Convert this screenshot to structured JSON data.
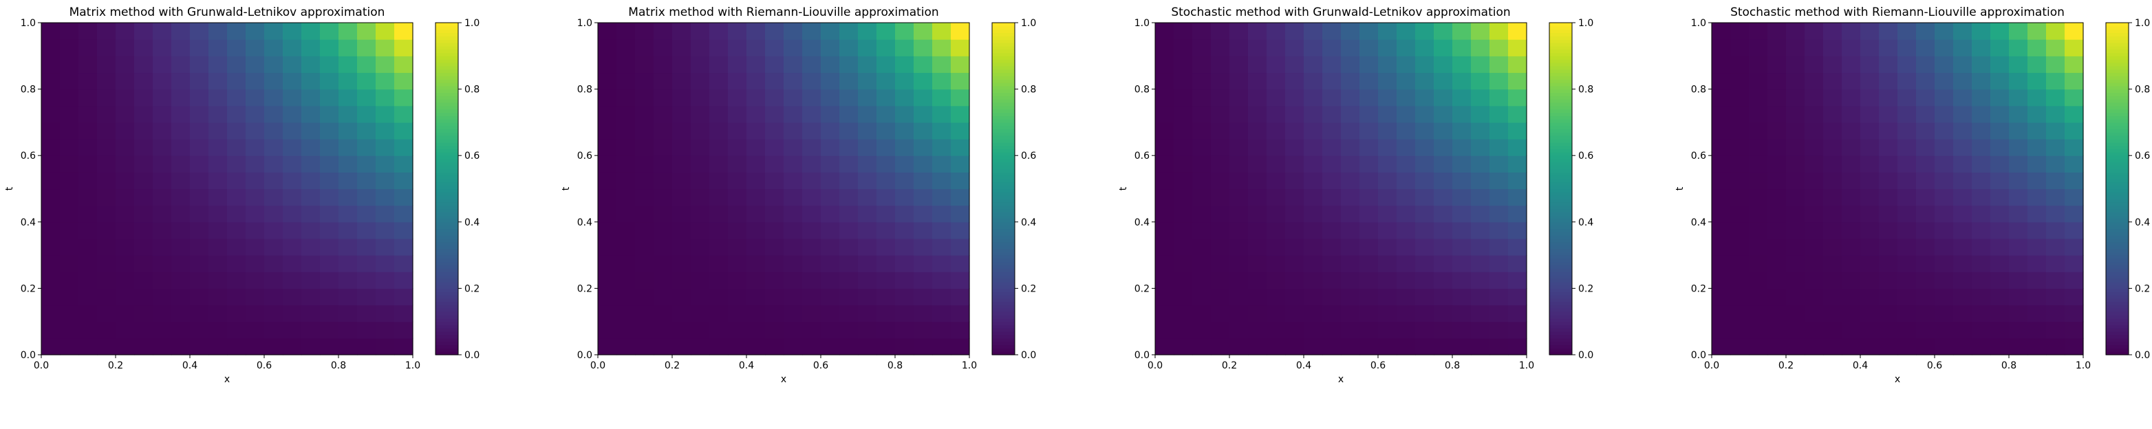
{
  "chart_data": [
    {
      "type": "heatmap",
      "title": "Matrix method with Grunwald-Letnikov approximation",
      "xlabel": "x",
      "ylabel": "t",
      "xlim": [
        0.0,
        1.0
      ],
      "ylim": [
        0.0,
        1.0
      ],
      "xticks": [
        "0.0",
        "0.2",
        "0.4",
        "0.6",
        "0.8",
        "1.0"
      ],
      "yticks": [
        "0.0",
        "0.2",
        "0.4",
        "0.6",
        "0.8",
        "1.0"
      ],
      "colorbar": {
        "range": [
          0.0,
          1.0
        ],
        "ticks": [
          "0.0",
          "0.2",
          "0.4",
          "0.6",
          "0.8",
          "1.0"
        ],
        "colormap": "viridis"
      },
      "grid": {
        "nx": 20,
        "nt": 20
      },
      "value_model": {
        "x_exponent": 2.0,
        "t_exponent": 1.6,
        "max": 1.0
      }
    },
    {
      "type": "heatmap",
      "title": "Matrix method with Riemann-Liouville approximation",
      "xlabel": "x",
      "ylabel": "t",
      "xlim": [
        0.0,
        1.0
      ],
      "ylim": [
        0.0,
        1.0
      ],
      "xticks": [
        "0.0",
        "0.2",
        "0.4",
        "0.6",
        "0.8",
        "1.0"
      ],
      "yticks": [
        "0.0",
        "0.2",
        "0.4",
        "0.6",
        "0.8",
        "1.0"
      ],
      "colorbar": {
        "range": [
          0.0,
          1.0
        ],
        "ticks": [
          "0.0",
          "0.2",
          "0.4",
          "0.6",
          "0.8",
          "1.0"
        ],
        "colormap": "viridis"
      },
      "grid": {
        "nx": 20,
        "nt": 20
      },
      "value_model": {
        "x_exponent": 2.2,
        "t_exponent": 1.7,
        "max": 1.0
      }
    },
    {
      "type": "heatmap",
      "title": "Stochastic method with Grunwald-Letnikov approximation",
      "xlabel": "x",
      "ylabel": "t",
      "xlim": [
        0.0,
        1.0
      ],
      "ylim": [
        0.0,
        1.0
      ],
      "xticks": [
        "0.0",
        "0.2",
        "0.4",
        "0.6",
        "0.8",
        "1.0"
      ],
      "yticks": [
        "0.0",
        "0.2",
        "0.4",
        "0.6",
        "0.8",
        "1.0"
      ],
      "colorbar": {
        "range": [
          0.0,
          1.0
        ],
        "ticks": [
          "0.0",
          "0.2",
          "0.4",
          "0.6",
          "0.8",
          "1.0"
        ],
        "colormap": "viridis"
      },
      "grid": {
        "nx": 20,
        "nt": 20
      },
      "value_model": {
        "x_exponent": 2.0,
        "t_exponent": 1.6,
        "max": 1.0
      }
    },
    {
      "type": "heatmap",
      "title": "Stochastic method with Riemann-Liouville approximation",
      "xlabel": "x",
      "ylabel": "t",
      "xlim": [
        0.0,
        1.0
      ],
      "ylim": [
        0.0,
        1.0
      ],
      "xticks": [
        "0.0",
        "0.2",
        "0.4",
        "0.6",
        "0.8",
        "1.0"
      ],
      "yticks": [
        "0.0",
        "0.2",
        "0.4",
        "0.6",
        "0.8",
        "1.0"
      ],
      "colorbar": {
        "range": [
          0.0,
          1.0
        ],
        "ticks": [
          "0.0",
          "0.2",
          "0.4",
          "0.6",
          "0.8",
          "1.0"
        ],
        "colormap": "viridis"
      },
      "grid": {
        "nx": 20,
        "nt": 20
      },
      "value_model": {
        "x_exponent": 2.3,
        "t_exponent": 1.8,
        "max": 1.0
      }
    }
  ]
}
